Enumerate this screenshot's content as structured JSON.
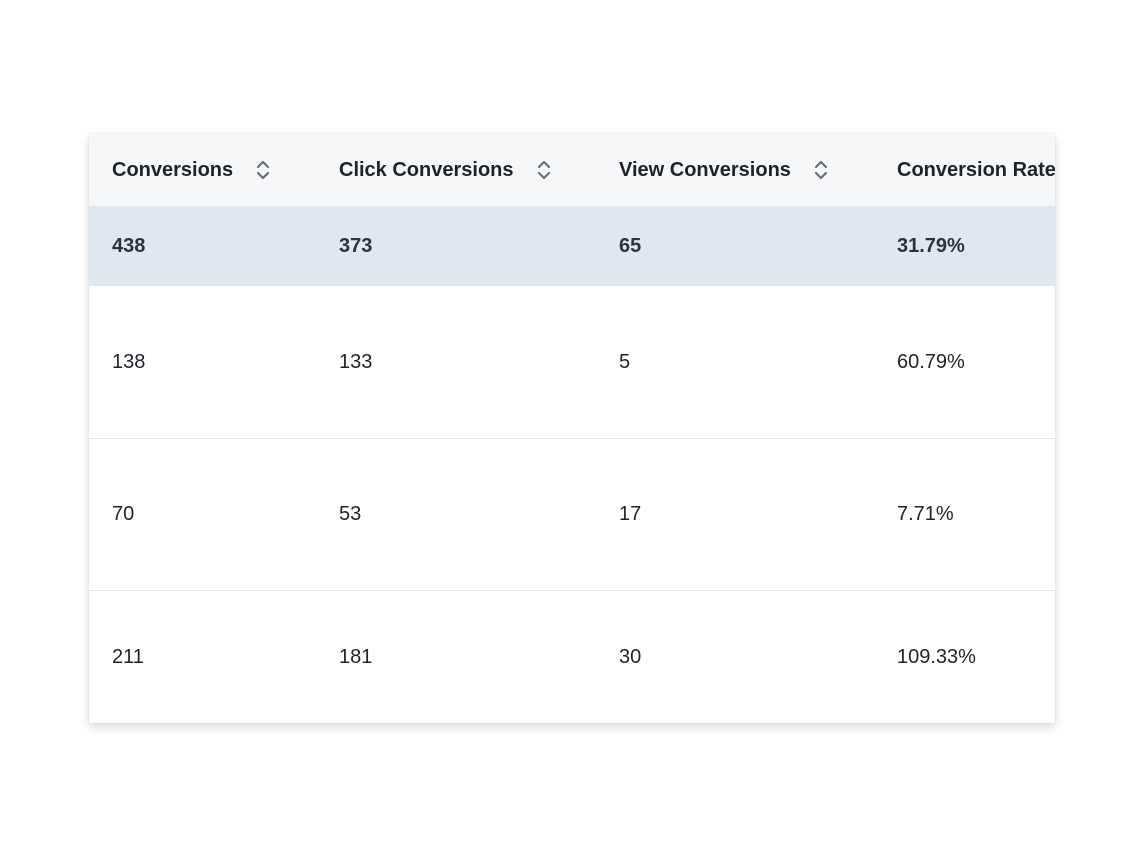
{
  "table": {
    "columns": [
      {
        "label": "Conversions",
        "sortable": true,
        "sort_icon": "sort-icon"
      },
      {
        "label": "Click Conversions",
        "sortable": true,
        "sort_icon": "sort-icon"
      },
      {
        "label": "View Conversions",
        "sortable": true,
        "sort_icon": "sort-icon"
      },
      {
        "label": "Conversion Rate",
        "sortable": false
      }
    ],
    "total_row": [
      "438",
      "373",
      "65",
      "31.79%"
    ],
    "rows": [
      [
        "138",
        "133",
        "5",
        "60.79%"
      ],
      [
        "70",
        "53",
        "17",
        "7.71%"
      ],
      [
        "211",
        "181",
        "30",
        "109.33%"
      ]
    ]
  },
  "colors": {
    "header_background": "#f6f7f8",
    "total_row_background": "#e0e7ef",
    "row_divider": "#e2e4e7"
  }
}
